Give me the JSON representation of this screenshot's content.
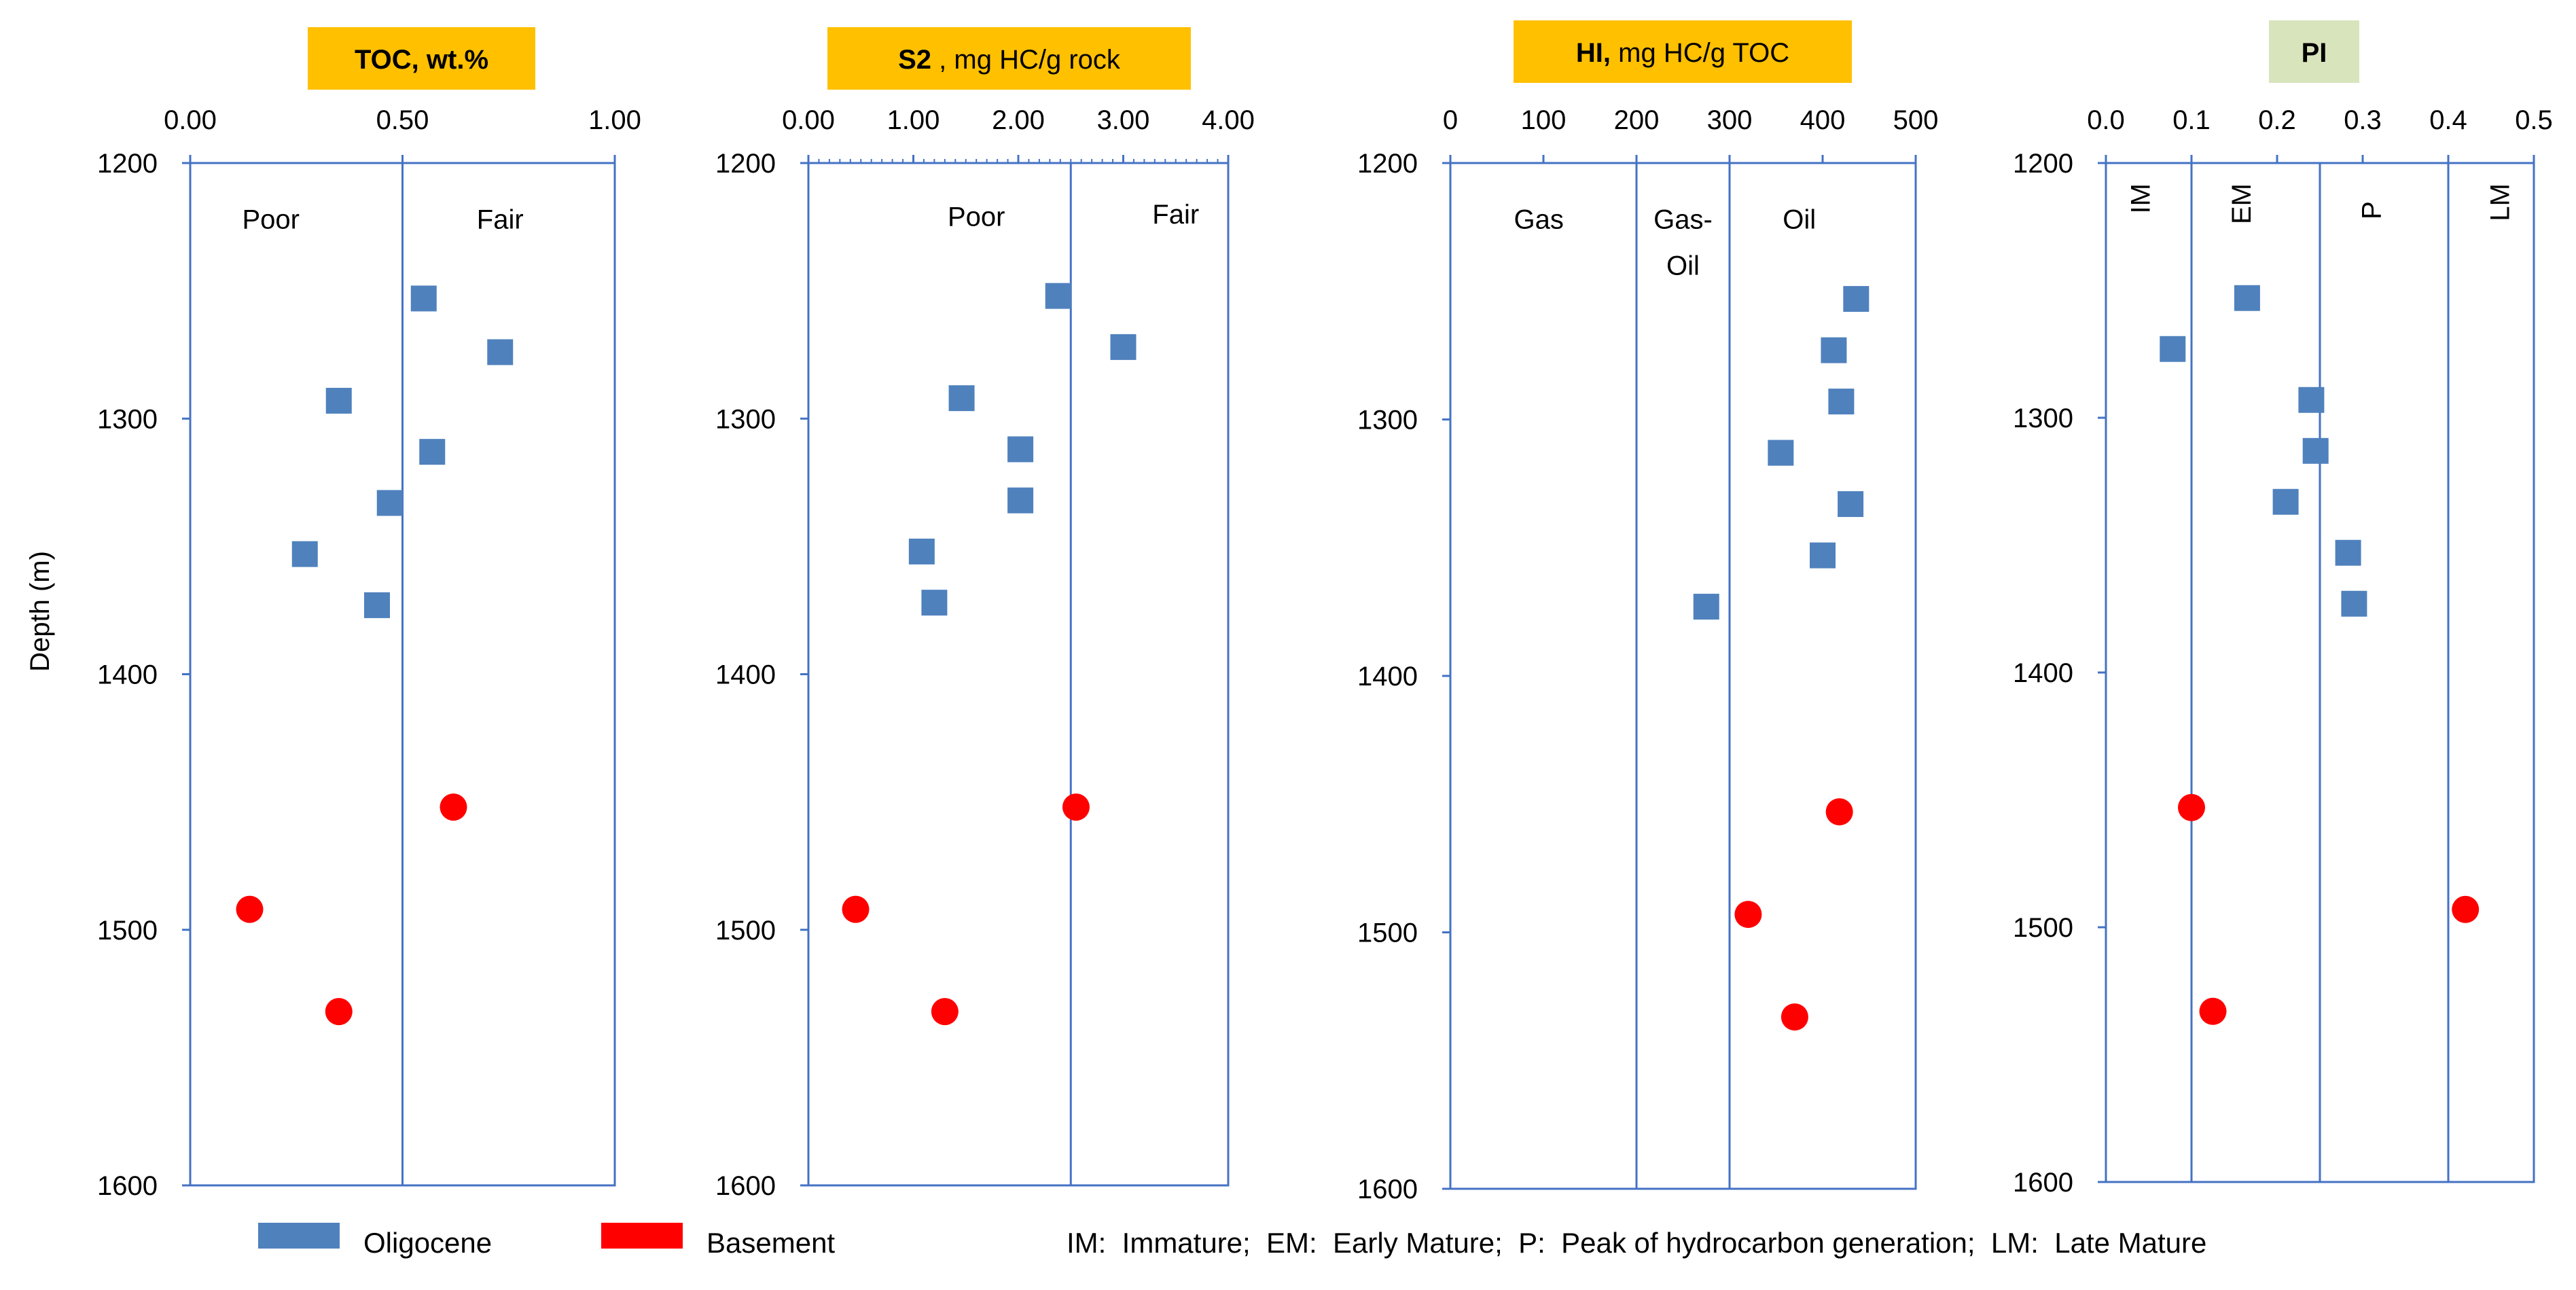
{
  "figure": {
    "ylabel": "Depth (m)",
    "legend": [
      {
        "label": "Oligocene",
        "color": "#4F81BD",
        "marker": "square"
      },
      {
        "label": "Basement",
        "color": "#FF0000",
        "marker": "circle"
      }
    ],
    "note": "IM:  Immature;  EM:  Early Mature;  P:  Peak of hydrocarbon generation;  LM:  Late Mature",
    "colors": {
      "axis": "#4472C4",
      "oligocene": "#4F81BD",
      "basement": "#FF0000",
      "title_orange": "#FFC000",
      "title_green": "#D8E4BC"
    }
  },
  "chart_data": [
    {
      "type": "scatter",
      "title_bold": "TOC, wt.%",
      "title_rest": "",
      "title_bg": "#FFC000",
      "xlim": [
        0,
        1
      ],
      "ylim": [
        1200,
        1600
      ],
      "xticks": [
        0,
        0.5,
        1
      ],
      "xticklabels": [
        "0.00",
        "0.50",
        "1.00"
      ],
      "yticks": [
        1200,
        1300,
        1400,
        1500,
        1600
      ],
      "yticklabels": [
        "1200",
        "1300",
        "1400",
        "1500",
        "1600"
      ],
      "minor_ticks": false,
      "dividers": [
        0.5
      ],
      "zones": [
        {
          "label": "Poor",
          "x": 0.19,
          "depth": 1215
        },
        {
          "label": "Fair",
          "x": 0.73,
          "depth": 1215
        }
      ],
      "series": [
        {
          "name": "Oligocene",
          "points": [
            [
              0.55,
              1253
            ],
            [
              0.73,
              1274
            ],
            [
              0.35,
              1293
            ],
            [
              0.57,
              1313
            ],
            [
              0.47,
              1333
            ],
            [
              0.27,
              1353
            ],
            [
              0.44,
              1373
            ]
          ]
        },
        {
          "name": "Basement",
          "points": [
            [
              0.62,
              1452
            ],
            [
              0.14,
              1492
            ],
            [
              0.35,
              1532
            ]
          ]
        }
      ]
    },
    {
      "type": "scatter",
      "title_bold": "S2",
      "title_rest": " , mg HC/g rock",
      "title_bg": "#FFC000",
      "xlim": [
        0,
        4
      ],
      "ylim": [
        1200,
        1600
      ],
      "xticks": [
        0,
        1,
        2,
        3,
        4
      ],
      "xticklabels": [
        "0.00",
        "1.00",
        "2.00",
        "3.00",
        "4.00"
      ],
      "yticks": [
        1200,
        1300,
        1400,
        1500,
        1600
      ],
      "yticklabels": [
        "1200",
        "1300",
        "1400",
        "1500",
        "1600"
      ],
      "minor_ticks": true,
      "dividers": [
        2.5
      ],
      "zones": [
        {
          "label": "Poor",
          "x": 1.6,
          "depth": 1214
        },
        {
          "label": "Fair",
          "x": 3.5,
          "depth": 1213
        }
      ],
      "series": [
        {
          "name": "Oligocene",
          "points": [
            [
              2.38,
              1252
            ],
            [
              3.0,
              1272
            ],
            [
              1.46,
              1292
            ],
            [
              2.02,
              1312
            ],
            [
              2.02,
              1332
            ],
            [
              1.08,
              1352
            ],
            [
              1.2,
              1372
            ]
          ]
        },
        {
          "name": "Basement",
          "points": [
            [
              2.55,
              1452
            ],
            [
              0.45,
              1492
            ],
            [
              1.3,
              1532
            ]
          ]
        }
      ]
    },
    {
      "type": "scatter",
      "title_bold": "HI,",
      "title_rest": "  mg HC/g TOC",
      "title_bg": "#FFC000",
      "xlim": [
        0,
        500
      ],
      "ylim": [
        1200,
        1600
      ],
      "xticks": [
        0,
        100,
        200,
        300,
        400,
        500
      ],
      "xticklabels": [
        "0",
        "100",
        "200",
        "300",
        "400",
        "500"
      ],
      "yticks": [
        1200,
        1300,
        1400,
        1500,
        1600
      ],
      "yticklabels": [
        "1200",
        "1300",
        "1400",
        "1500",
        "1600"
      ],
      "minor_ticks": false,
      "dividers": [
        200,
        300
      ],
      "zones": [
        {
          "label": "Gas",
          "x": 95,
          "depth": 1215
        },
        {
          "label": "Gas-",
          "x": 250,
          "depth": 1215
        },
        {
          "label": "Oil",
          "x": 250,
          "depth": 1233
        },
        {
          "label": "Oil",
          "x": 375,
          "depth": 1215
        }
      ],
      "series": [
        {
          "name": "Oligocene",
          "points": [
            [
              436,
              1253
            ],
            [
              412,
              1273
            ],
            [
              420,
              1293
            ],
            [
              355,
              1313
            ],
            [
              430,
              1333
            ],
            [
              400,
              1353
            ],
            [
              275,
              1373
            ]
          ]
        },
        {
          "name": "Basement",
          "points": [
            [
              418,
              1453
            ],
            [
              320,
              1493
            ],
            [
              370,
              1533
            ]
          ]
        }
      ]
    },
    {
      "type": "scatter",
      "title_bold": "PI",
      "title_rest": "",
      "title_bg": "#D8E4BC",
      "xlim": [
        0,
        0.5
      ],
      "ylim": [
        1200,
        1600
      ],
      "xticks": [
        0,
        0.1,
        0.2,
        0.3,
        0.4,
        0.5
      ],
      "xticklabels": [
        "0.0",
        "0.1",
        "0.2",
        "0.3",
        "0.4",
        "0.5"
      ],
      "yticks": [
        1200,
        1300,
        1400,
        1500,
        1600
      ],
      "yticklabels": [
        "1200",
        "1300",
        "1400",
        "1500",
        "1600"
      ],
      "minor_ticks": false,
      "dividers": [
        0.1,
        0.25,
        0.4
      ],
      "zones": [
        {
          "label": "IM",
          "x": 0.04,
          "depth": 1208,
          "rotated": true
        },
        {
          "label": "EM",
          "x": 0.158,
          "depth": 1208,
          "rotated": true
        },
        {
          "label": "P",
          "x": 0.31,
          "depth": 1215,
          "rotated": true
        },
        {
          "label": "LM",
          "x": 0.46,
          "depth": 1208,
          "rotated": true
        }
      ],
      "series": [
        {
          "name": "Oligocene",
          "points": [
            [
              0.165,
              1253
            ],
            [
              0.078,
              1273
            ],
            [
              0.24,
              1293
            ],
            [
              0.245,
              1313
            ],
            [
              0.21,
              1333
            ],
            [
              0.283,
              1353
            ],
            [
              0.29,
              1373
            ]
          ]
        },
        {
          "name": "Basement",
          "points": [
            [
              0.1,
              1453
            ],
            [
              0.42,
              1493
            ],
            [
              0.125,
              1533
            ]
          ]
        }
      ]
    }
  ]
}
